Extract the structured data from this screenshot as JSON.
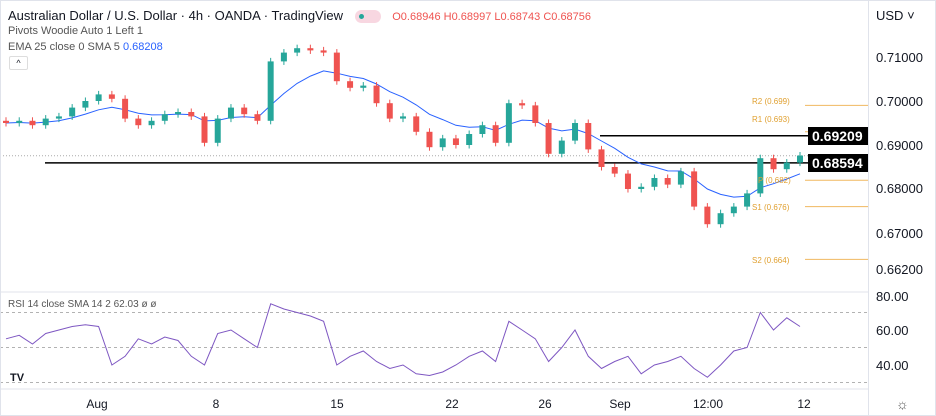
{
  "header": {
    "title": "Australian Dollar / U.S. Dollar · 4h · OANDA · TradingView",
    "ohlc": "O0.68946 H0.68997 L0.68743 C0.68756"
  },
  "indicators": {
    "pivots": "Pivots Woodie Auto 1 Left 1",
    "ema_label": "EMA 25 close 0 SMA 5",
    "ema_value": "0.68208",
    "rsi_label": "RSI 14 close SMA 14 2",
    "rsi_value": "62.03",
    "rsi_extra": "ø ø"
  },
  "price_axis": {
    "currency": "USD",
    "ticks": [
      "0.71000",
      "0.70000",
      "0.69000",
      "0.68000",
      "0.67000",
      "0.66200"
    ],
    "tags": [
      "0.69209",
      "0.68594"
    ]
  },
  "rsi_axis": {
    "ticks": [
      "80.00",
      "60.00",
      "40.00"
    ]
  },
  "time_axis": [
    "Aug",
    "8",
    "15",
    "22",
    "26",
    "Sep",
    "12:00",
    "12"
  ],
  "pivots": [
    {
      "label": "R2 (0.699)",
      "value": 0.699
    },
    {
      "label": "R1 (0.693)",
      "value": 0.693
    },
    {
      "label": "P (0.682)",
      "value": 0.682
    },
    {
      "label": "S1 (0.676)",
      "value": 0.676
    },
    {
      "label": "S2 (0.664)",
      "value": 0.664
    }
  ],
  "colors": {
    "up": "#26a69a",
    "down": "#ef5350",
    "ema": "#2962ff",
    "rsi": "#7e57c2",
    "pivot": "#f0b860"
  },
  "chart_data": {
    "type": "candlestick",
    "symbol": "AUDUSD 4h",
    "horizontal_lines": [
      0.69209,
      0.68594
    ],
    "current_price": 0.68756,
    "ylim": [
      0.66,
      0.7155
    ],
    "closes": [
      0.695,
      0.6955,
      0.6945,
      0.696,
      0.6965,
      0.6985,
      0.7,
      0.7015,
      0.7005,
      0.696,
      0.6945,
      0.6955,
      0.697,
      0.6975,
      0.6965,
      0.6905,
      0.696,
      0.6985,
      0.697,
      0.6955,
      0.709,
      0.711,
      0.712,
      0.7115,
      0.711,
      0.7045,
      0.703,
      0.7035,
      0.6995,
      0.696,
      0.6965,
      0.693,
      0.6895,
      0.6915,
      0.69,
      0.6925,
      0.6945,
      0.6905,
      0.6995,
      0.699,
      0.695,
      0.688,
      0.691,
      0.695,
      0.689,
      0.685,
      0.6835,
      0.68,
      0.6805,
      0.6825,
      0.681,
      0.684,
      0.676,
      0.672,
      0.6745,
      0.676,
      0.679,
      0.687,
      0.6845,
      0.686,
      0.6876
    ],
    "rsi": [
      55,
      57,
      52,
      58,
      60,
      62,
      63,
      62,
      40,
      45,
      55,
      52,
      56,
      54,
      45,
      40,
      58,
      60,
      55,
      50,
      75,
      72,
      70,
      68,
      65,
      40,
      45,
      48,
      42,
      38,
      40,
      35,
      34,
      36,
      40,
      45,
      48,
      42,
      65,
      60,
      55,
      42,
      50,
      60,
      45,
      38,
      42,
      45,
      35,
      40,
      42,
      45,
      38,
      33,
      40,
      48,
      50,
      70,
      60,
      67,
      62
    ],
    "rsi_ylim": [
      30,
      82
    ]
  }
}
